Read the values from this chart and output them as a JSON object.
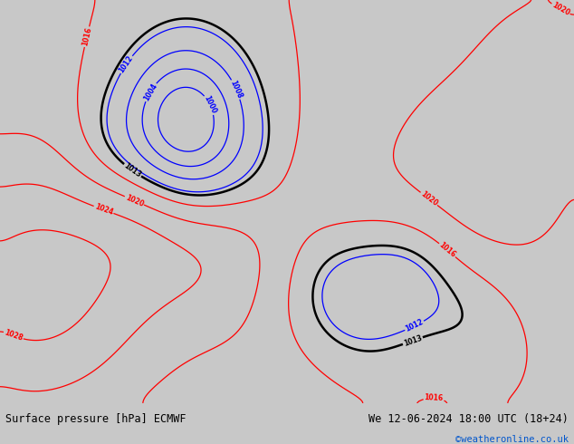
{
  "title_left": "Surface pressure [hPa] ECMWF",
  "title_right": "We 12-06-2024 18:00 UTC (18+24)",
  "copyright": "©weatheronline.co.uk",
  "figsize": [
    6.34,
    4.9
  ],
  "dpi": 100,
  "ocean_color": "#d0d0d0",
  "land_color": "#b4e088",
  "coast_color": "#888888",
  "black_contour_level": 1013,
  "base_pressure": 1016.0,
  "contour_interval": 4,
  "contour_min": 988,
  "contour_max": 1033
}
